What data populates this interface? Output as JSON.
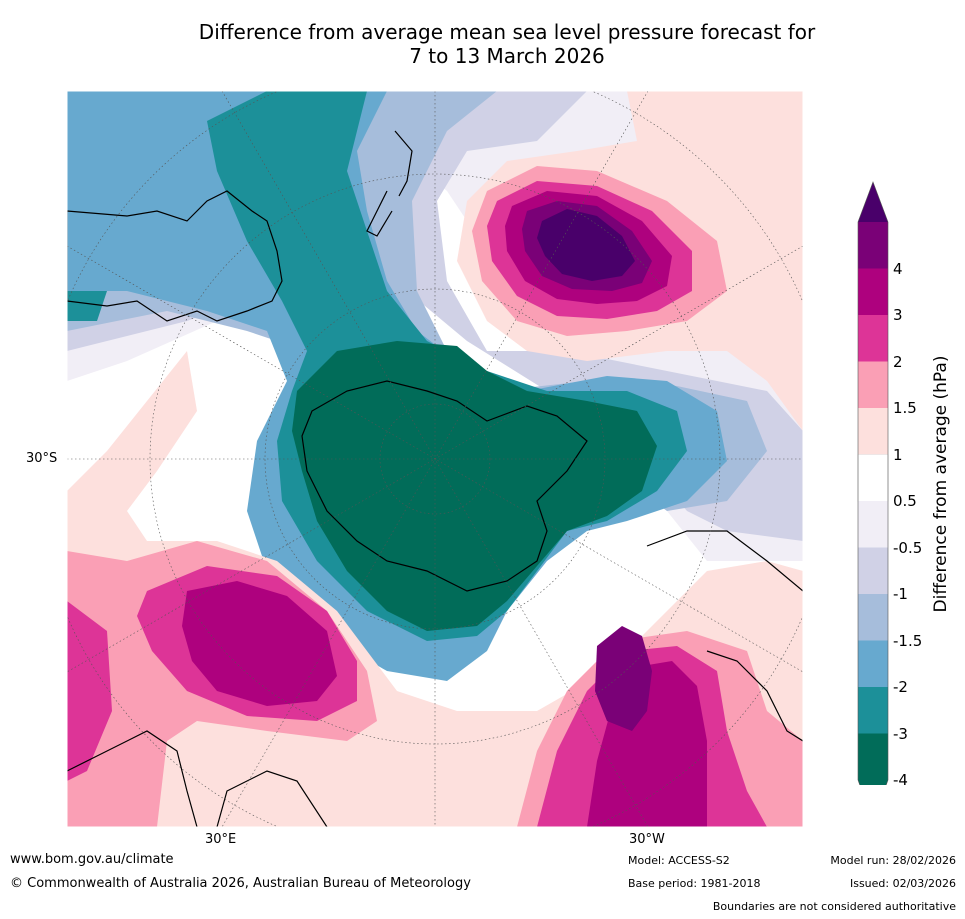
{
  "title_line1": "Difference from average mean sea level pressure forecast for",
  "title_line2": "7 to 13 March 2026",
  "map": {
    "lat_label": "30°S",
    "lon_label_left": "30°E",
    "lon_label_right": "30°W",
    "colors": {
      "ocean_bg": "#ffffff",
      "anom_m4": "#016c59",
      "anom_m3": "#1c9099",
      "anom_m2": "#67a9cf",
      "anom_m15": "#a6bddb",
      "anom_m1": "#d0d1e6",
      "anom_m05": "#f1eef6",
      "anom_p05": "#fde0dd",
      "anom_p1": "#fa9fb5",
      "anom_p15": "#dd3497",
      "anom_p2": "#ae017e",
      "anom_p3": "#7a0177",
      "anom_p4": "#49006a"
    }
  },
  "colorbar": {
    "title": "Difference from average (hPa)",
    "levels": [
      {
        "label": "4",
        "color": "#7a0177"
      },
      {
        "label": "3",
        "color": "#ae017e"
      },
      {
        "label": "2",
        "color": "#dd3497"
      },
      {
        "label": "1.5",
        "color": "#fa9fb5"
      },
      {
        "label": "1",
        "color": "#fde0dd"
      },
      {
        "label": "0.5",
        "color": "#ffffff"
      },
      {
        "label": "-0.5",
        "color": "#f1eef6"
      },
      {
        "label": "-1",
        "color": "#d0d1e6"
      },
      {
        "label": "-1.5",
        "color": "#a6bddb"
      },
      {
        "label": "-2",
        "color": "#67a9cf"
      },
      {
        "label": "-3",
        "color": "#1c9099"
      },
      {
        "label": "-4",
        "color": "#016c59"
      }
    ],
    "top_extend_color": "#49006a",
    "bottom_extend_color": "#016c59"
  },
  "footer": {
    "url": "www.bom.gov.au/climate",
    "copyright": "© Commonwealth of Australia 2026, Australian Bureau of Meteorology",
    "model": "Model: ACCESS-S2",
    "base_period": "Base period: 1981-2018",
    "model_run": "Model run: 28/02/2026",
    "issued": "Issued: 02/03/2026",
    "disclaimer": "Boundaries are not considered authoritative"
  }
}
